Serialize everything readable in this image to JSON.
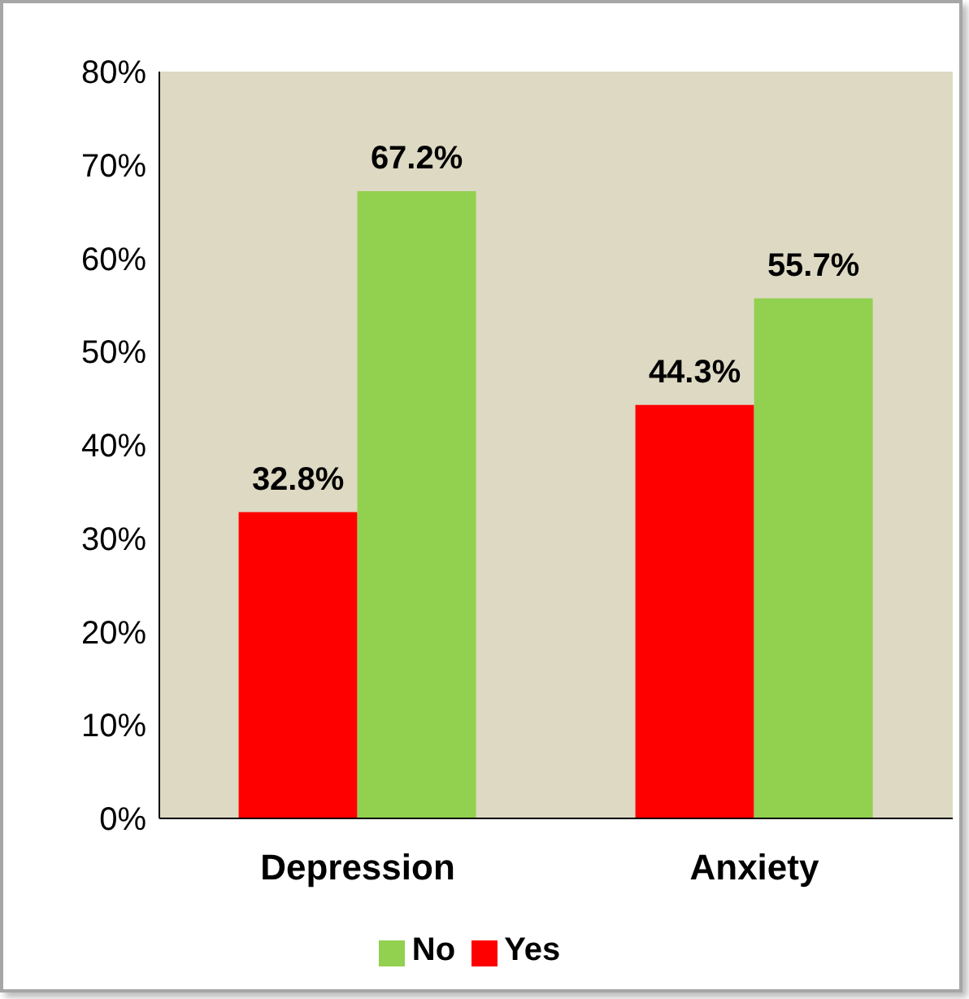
{
  "chart_data": {
    "type": "bar",
    "categories": [
      "Depression",
      "Anxiety"
    ],
    "series": [
      {
        "name": "Yes",
        "color": "#ff0000",
        "values": [
          32.8,
          44.3
        ],
        "value_labels": [
          "32.8%",
          "44.3%"
        ]
      },
      {
        "name": "No",
        "color": "#92d050",
        "values": [
          67.2,
          55.7
        ],
        "value_labels": [
          "67.2%",
          "55.7%"
        ]
      }
    ],
    "ylim": [
      0,
      80
    ],
    "yticks": [
      {
        "value": 0,
        "label": "0%"
      },
      {
        "value": 10,
        "label": "10%"
      },
      {
        "value": 20,
        "label": "20%"
      },
      {
        "value": 30,
        "label": "30%"
      },
      {
        "value": 40,
        "label": "40%"
      },
      {
        "value": 50,
        "label": "50%"
      },
      {
        "value": 60,
        "label": "60%"
      },
      {
        "value": 70,
        "label": "70%"
      },
      {
        "value": 80,
        "label": "80%"
      }
    ],
    "grid": false,
    "legend": "bottom"
  }
}
